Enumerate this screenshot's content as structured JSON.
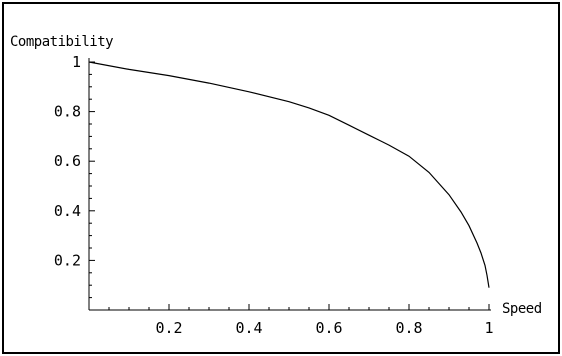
{
  "chart_data": {
    "type": "line",
    "title": "",
    "xlabel": "Speed",
    "ylabel": "Compatibility",
    "xlim": [
      0,
      1
    ],
    "ylim": [
      0.085,
      1
    ],
    "x_ticks": [
      {
        "value": 0.2,
        "label": "0.2"
      },
      {
        "value": 0.4,
        "label": "0.4"
      },
      {
        "value": 0.6,
        "label": "0.6"
      },
      {
        "value": 0.8,
        "label": "0.8"
      },
      {
        "value": 1.0,
        "label": "1"
      }
    ],
    "y_ticks": [
      {
        "value": 0.2,
        "label": "0.2"
      },
      {
        "value": 0.4,
        "label": "0.4"
      },
      {
        "value": 0.6,
        "label": "0.6"
      },
      {
        "value": 0.8,
        "label": "0.8"
      },
      {
        "value": 1.0,
        "label": "1"
      }
    ],
    "grid": false,
    "series": [
      {
        "x": [
          0.0,
          0.1,
          0.2,
          0.3,
          0.4,
          0.5,
          0.55,
          0.6,
          0.65,
          0.7,
          0.75,
          0.8,
          0.85,
          0.9,
          0.93,
          0.95,
          0.97,
          0.98,
          0.99,
          0.995,
          1.0
        ],
        "y": [
          1.0,
          0.97,
          0.945,
          0.915,
          0.88,
          0.84,
          0.815,
          0.785,
          0.745,
          0.705,
          0.665,
          0.62,
          0.555,
          0.465,
          0.395,
          0.34,
          0.27,
          0.23,
          0.18,
          0.14,
          0.09
        ]
      }
    ]
  }
}
